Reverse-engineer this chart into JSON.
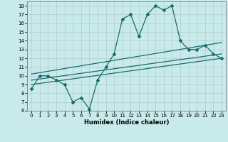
{
  "title": "",
  "xlabel": "Humidex (Indice chaleur)",
  "bg_color": "#c8eaea",
  "grid_color": "#b0cccc",
  "line_color": "#1a6b6b",
  "xlim": [
    -0.5,
    23.5
  ],
  "ylim": [
    6,
    18.5
  ],
  "xticks": [
    0,
    1,
    2,
    3,
    4,
    5,
    6,
    7,
    8,
    9,
    10,
    11,
    12,
    13,
    14,
    15,
    16,
    17,
    18,
    19,
    20,
    21,
    22,
    23
  ],
  "yticks": [
    6,
    7,
    8,
    9,
    10,
    11,
    12,
    13,
    14,
    15,
    16,
    17,
    18
  ],
  "line1_x": [
    0,
    1,
    2,
    3,
    4,
    5,
    6,
    7,
    8,
    9,
    10,
    11,
    12,
    13,
    14,
    15,
    16,
    17,
    18,
    19,
    20,
    21,
    22,
    23
  ],
  "line1_y": [
    8.5,
    10.0,
    10.0,
    9.5,
    9.0,
    7.0,
    7.5,
    6.2,
    9.5,
    11.0,
    12.5,
    16.5,
    17.0,
    14.5,
    17.0,
    18.0,
    17.5,
    18.0,
    14.0,
    13.0,
    13.0,
    13.5,
    12.5,
    12.0
  ],
  "line2_x": [
    0,
    23
  ],
  "line2_y": [
    9.5,
    12.5
  ],
  "line3_x": [
    0,
    23
  ],
  "line3_y": [
    10.2,
    13.8
  ],
  "line4_x": [
    0,
    23
  ],
  "line4_y": [
    9.0,
    12.0
  ]
}
